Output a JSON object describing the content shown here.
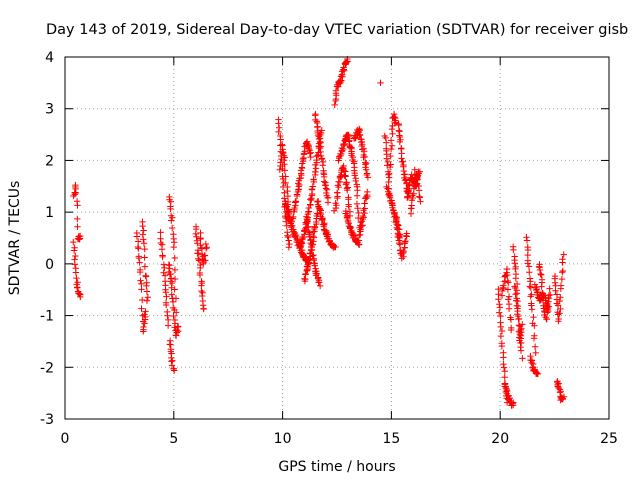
{
  "chart_data": {
    "type": "scatter",
    "title": "Day 143 of 2019, Sidereal Day-to-day VTEC variation (SDTVAR) for receiver gisb",
    "xlabel": "GPS time / hours",
    "ylabel": "SDTVAR / TECUs",
    "xlim": [
      0,
      25
    ],
    "ylim": [
      -3,
      4
    ],
    "xticks": [
      "0",
      "5",
      "10",
      "15",
      "20",
      "25"
    ],
    "yticks": [
      "-3",
      "-2",
      "-1",
      "0",
      "1",
      "2",
      "3",
      "4"
    ],
    "grid": true,
    "marker": "+",
    "color": "#ff0000",
    "segments": [
      {
        "t0": 0.4,
        "t1": 0.7,
        "pts": [
          [
            0.4,
            1.3
          ],
          [
            0.5,
            1.5
          ],
          [
            0.55,
            1.1
          ],
          [
            0.6,
            0.5
          ]
        ]
      },
      {
        "t0": 0.4,
        "t1": 0.7,
        "pts": [
          [
            0.4,
            0.4
          ],
          [
            0.5,
            -0.1
          ],
          [
            0.55,
            -0.35
          ],
          [
            0.65,
            -0.6
          ]
        ]
      },
      {
        "t0": 3.3,
        "t1": 3.7,
        "pts": [
          [
            3.3,
            0.6
          ],
          [
            3.4,
            0.1
          ],
          [
            3.5,
            -0.5
          ],
          [
            3.55,
            -1.0
          ],
          [
            3.6,
            -1.3
          ],
          [
            3.7,
            -0.9
          ]
        ]
      },
      {
        "t0": 3.55,
        "t1": 3.8,
        "pts": [
          [
            3.55,
            0.8
          ],
          [
            3.65,
            0.3
          ],
          [
            3.7,
            -0.2
          ],
          [
            3.8,
            -0.7
          ]
        ]
      },
      {
        "t0": 4.4,
        "t1": 4.75,
        "pts": [
          [
            4.4,
            0.6
          ],
          [
            4.5,
            0.1
          ],
          [
            4.6,
            -0.4
          ],
          [
            4.7,
            -0.9
          ],
          [
            4.75,
            -1.2
          ]
        ]
      },
      {
        "t0": 4.8,
        "t1": 5.1,
        "pts": [
          [
            4.8,
            1.3
          ],
          [
            4.9,
            0.9
          ],
          [
            5.0,
            0.3
          ],
          [
            5.05,
            -0.3
          ],
          [
            5.1,
            -0.9
          ]
        ]
      },
      {
        "t0": 4.75,
        "t1": 5.2,
        "pts": [
          [
            4.75,
            0.0
          ],
          [
            4.9,
            -0.4
          ],
          [
            5.0,
            -0.9
          ],
          [
            5.1,
            -1.4
          ],
          [
            5.2,
            -1.2
          ]
        ]
      },
      {
        "t0": 4.8,
        "t1": 5.0,
        "pts": [
          [
            4.8,
            -1.5
          ],
          [
            4.9,
            -1.8
          ],
          [
            5.0,
            -2.1
          ]
        ]
      },
      {
        "t0": 6.0,
        "t1": 6.4,
        "pts": [
          [
            6.0,
            0.7
          ],
          [
            6.1,
            0.3
          ],
          [
            6.2,
            -0.1
          ],
          [
            6.3,
            -0.5
          ],
          [
            6.4,
            -0.9
          ]
        ]
      },
      {
        "t0": 6.2,
        "t1": 6.5,
        "pts": [
          [
            6.2,
            0.6
          ],
          [
            6.3,
            0.2
          ],
          [
            6.4,
            0.0
          ],
          [
            6.5,
            0.4
          ]
        ]
      },
      {
        "t0": 9.8,
        "t1": 10.3,
        "pts": [
          [
            9.8,
            2.8
          ],
          [
            9.9,
            2.3
          ],
          [
            10.0,
            1.7
          ],
          [
            10.1,
            1.2
          ],
          [
            10.2,
            0.7
          ],
          [
            10.3,
            0.3
          ]
        ]
      },
      {
        "t0": 9.9,
        "t1": 10.4,
        "pts": [
          [
            9.9,
            1.8
          ],
          [
            10.0,
            2.3
          ],
          [
            10.1,
            2.0
          ],
          [
            10.2,
            1.4
          ],
          [
            10.3,
            0.9
          ],
          [
            10.4,
            0.8
          ]
        ]
      },
      {
        "t0": 10.1,
        "t1": 11.2,
        "pts": [
          [
            10.1,
            1.2
          ],
          [
            10.3,
            0.9
          ],
          [
            10.5,
            0.6
          ],
          [
            10.7,
            0.4
          ],
          [
            10.9,
            0.2
          ],
          [
            11.2,
            0.0
          ]
        ]
      },
      {
        "t0": 10.5,
        "t1": 11.3,
        "pts": [
          [
            10.5,
            0.9
          ],
          [
            10.7,
            1.4
          ],
          [
            10.9,
            1.9
          ],
          [
            11.1,
            2.4
          ],
          [
            11.3,
            2.1
          ]
        ]
      },
      {
        "t0": 10.8,
        "t1": 11.8,
        "pts": [
          [
            10.8,
            0.3
          ],
          [
            11.0,
            0.6
          ],
          [
            11.2,
            1.0
          ],
          [
            11.4,
            1.5
          ],
          [
            11.6,
            2.1
          ],
          [
            11.8,
            2.6
          ]
        ]
      },
      {
        "t0": 11.0,
        "t1": 11.6,
        "pts": [
          [
            11.0,
            -0.3
          ],
          [
            11.2,
            0.0
          ],
          [
            11.4,
            0.5
          ],
          [
            11.6,
            1.0
          ]
        ]
      },
      {
        "t0": 11.1,
        "t1": 11.7,
        "pts": [
          [
            11.1,
            0.9
          ],
          [
            11.3,
            0.4
          ],
          [
            11.5,
            -0.1
          ],
          [
            11.7,
            -0.4
          ]
        ]
      },
      {
        "t0": 11.5,
        "t1": 12.1,
        "pts": [
          [
            11.5,
            2.9
          ],
          [
            11.7,
            2.4
          ],
          [
            11.9,
            1.7
          ],
          [
            12.1,
            1.2
          ]
        ]
      },
      {
        "t0": 11.6,
        "t1": 12.4,
        "pts": [
          [
            11.6,
            1.2
          ],
          [
            11.8,
            0.9
          ],
          [
            12.0,
            0.6
          ],
          [
            12.2,
            0.4
          ],
          [
            12.4,
            0.3
          ]
        ]
      },
      {
        "t0": 12.4,
        "t1": 13.0,
        "pts": [
          [
            12.4,
            3.1
          ],
          [
            12.5,
            3.4
          ],
          [
            12.7,
            3.6
          ],
          [
            12.85,
            3.85
          ],
          [
            13.0,
            3.95
          ]
        ]
      },
      {
        "t0": 12.4,
        "t1": 13.1,
        "pts": [
          [
            12.4,
            1.0
          ],
          [
            12.6,
            1.6
          ],
          [
            12.8,
            1.9
          ],
          [
            13.0,
            1.4
          ],
          [
            13.1,
            0.9
          ]
        ]
      },
      {
        "t0": 12.6,
        "t1": 13.5,
        "pts": [
          [
            12.6,
            2.0
          ],
          [
            12.8,
            2.3
          ],
          [
            13.0,
            2.5
          ],
          [
            13.2,
            2.1
          ],
          [
            13.4,
            1.5
          ],
          [
            13.5,
            0.9
          ]
        ]
      },
      {
        "t0": 12.9,
        "t1": 13.6,
        "pts": [
          [
            12.9,
            1.0
          ],
          [
            13.1,
            0.7
          ],
          [
            13.3,
            0.5
          ],
          [
            13.5,
            0.4
          ],
          [
            13.6,
            0.8
          ]
        ]
      },
      {
        "t0": 13.3,
        "t1": 13.9,
        "pts": [
          [
            13.3,
            2.4
          ],
          [
            13.5,
            2.6
          ],
          [
            13.7,
            2.2
          ],
          [
            13.9,
            1.7
          ]
        ]
      },
      {
        "t0": 13.6,
        "t1": 13.9,
        "pts": [
          [
            13.6,
            0.6
          ],
          [
            13.7,
            0.9
          ],
          [
            13.8,
            1.2
          ],
          [
            13.9,
            1.4
          ]
        ]
      },
      {
        "t0": 14.5,
        "t1": 14.5,
        "pts": [
          [
            14.5,
            3.5
          ]
        ]
      },
      {
        "t0": 14.7,
        "t1": 15.2,
        "pts": [
          [
            14.7,
            2.5
          ],
          [
            14.8,
            2.0
          ],
          [
            14.9,
            1.6
          ],
          [
            15.0,
            2.3
          ],
          [
            15.1,
            2.9
          ],
          [
            15.2,
            2.7
          ]
        ]
      },
      {
        "t0": 14.8,
        "t1": 15.4,
        "pts": [
          [
            14.8,
            1.5
          ],
          [
            15.0,
            1.2
          ],
          [
            15.2,
            0.9
          ],
          [
            15.4,
            0.5
          ]
        ]
      },
      {
        "t0": 15.3,
        "t1": 15.8,
        "pts": [
          [
            15.3,
            2.7
          ],
          [
            15.4,
            2.4
          ],
          [
            15.5,
            2.0
          ],
          [
            15.6,
            1.7
          ],
          [
            15.8,
            1.3
          ]
        ]
      },
      {
        "t0": 15.2,
        "t1": 15.7,
        "pts": [
          [
            15.2,
            0.9
          ],
          [
            15.3,
            0.6
          ],
          [
            15.4,
            0.3
          ],
          [
            15.5,
            0.1
          ],
          [
            15.7,
            0.6
          ]
        ]
      },
      {
        "t0": 15.7,
        "t1": 16.3,
        "pts": [
          [
            15.7,
            1.3
          ],
          [
            15.9,
            1.7
          ],
          [
            16.1,
            1.5
          ],
          [
            16.3,
            1.8
          ]
        ]
      },
      {
        "t0": 15.9,
        "t1": 16.3,
        "pts": [
          [
            15.9,
            1.0
          ],
          [
            16.0,
            1.3
          ],
          [
            16.1,
            1.8
          ],
          [
            16.2,
            1.6
          ],
          [
            16.3,
            1.2
          ]
        ]
      },
      {
        "t0": 19.9,
        "t1": 20.3,
        "pts": [
          [
            19.9,
            -0.5
          ],
          [
            20.0,
            -1.0
          ],
          [
            20.1,
            -1.6
          ],
          [
            20.2,
            -2.2
          ],
          [
            20.3,
            -2.7
          ]
        ]
      },
      {
        "t0": 20.2,
        "t1": 20.6,
        "pts": [
          [
            20.2,
            -2.3
          ],
          [
            20.3,
            -2.5
          ],
          [
            20.4,
            -2.6
          ],
          [
            20.5,
            -2.7
          ]
        ]
      },
      {
        "t0": 20.1,
        "t1": 20.5,
        "pts": [
          [
            20.1,
            -0.6
          ],
          [
            20.2,
            -0.3
          ],
          [
            20.3,
            -0.1
          ],
          [
            20.4,
            -0.7
          ],
          [
            20.5,
            -1.3
          ]
        ]
      },
      {
        "t0": 20.6,
        "t1": 21.0,
        "pts": [
          [
            20.6,
            0.3
          ],
          [
            20.7,
            -0.1
          ],
          [
            20.8,
            -0.7
          ],
          [
            20.9,
            -1.3
          ],
          [
            21.0,
            -1.8
          ]
        ]
      },
      {
        "t0": 20.7,
        "t1": 21.0,
        "pts": [
          [
            20.7,
            -0.4
          ],
          [
            20.8,
            -0.9
          ],
          [
            20.9,
            -1.5
          ],
          [
            21.0,
            -1.2
          ]
        ]
      },
      {
        "t0": 21.2,
        "t1": 21.6,
        "pts": [
          [
            21.2,
            0.5
          ],
          [
            21.3,
            0.0
          ],
          [
            21.4,
            -0.5
          ],
          [
            21.5,
            -1.0
          ],
          [
            21.6,
            -1.7
          ]
        ]
      },
      {
        "t0": 21.4,
        "t1": 21.7,
        "pts": [
          [
            21.4,
            -1.8
          ],
          [
            21.5,
            -2.0
          ],
          [
            21.6,
            -2.1
          ]
        ]
      },
      {
        "t0": 21.6,
        "t1": 22.3,
        "pts": [
          [
            21.6,
            -0.4
          ],
          [
            21.8,
            -0.7
          ],
          [
            22.0,
            -0.6
          ],
          [
            22.2,
            -0.9
          ],
          [
            22.3,
            -0.5
          ]
        ]
      },
      {
        "t0": 21.8,
        "t1": 22.2,
        "pts": [
          [
            21.8,
            0.0
          ],
          [
            21.9,
            -0.3
          ],
          [
            22.0,
            -0.8
          ],
          [
            22.1,
            -1.1
          ],
          [
            22.2,
            -0.7
          ]
        ]
      },
      {
        "t0": 22.5,
        "t1": 22.9,
        "pts": [
          [
            22.5,
            -0.2
          ],
          [
            22.6,
            -0.7
          ],
          [
            22.7,
            -1.1
          ],
          [
            22.8,
            -0.4
          ],
          [
            22.9,
            0.2
          ]
        ]
      },
      {
        "t0": 22.6,
        "t1": 22.9,
        "pts": [
          [
            22.6,
            -2.3
          ],
          [
            22.7,
            -2.4
          ],
          [
            22.8,
            -2.6
          ]
        ]
      }
    ]
  }
}
